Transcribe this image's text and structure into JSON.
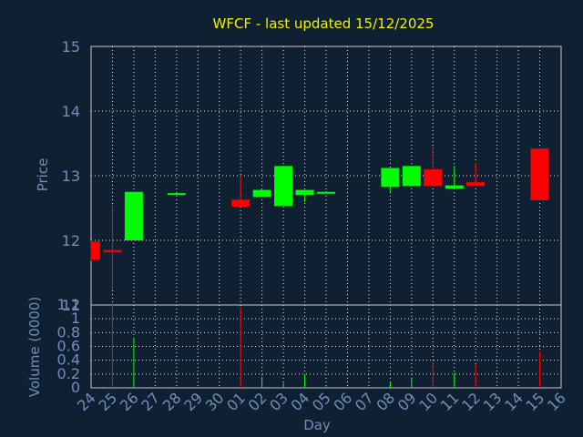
{
  "chart_data": [
    {
      "type": "candlestick",
      "title": "WFCF - last updated 15/12/2025",
      "ylabel": "Price",
      "ylim": [
        11,
        15
      ],
      "yticks": [
        "11",
        "12",
        "13",
        "14",
        "15"
      ],
      "grid": true,
      "colors": {
        "up": "#00ff00",
        "down": "#ff0000"
      },
      "candles": [
        {
          "day": "24",
          "open": 11.98,
          "high": 12.0,
          "low": 11.68,
          "close": 11.7
        },
        {
          "day": "25",
          "open": 11.85,
          "high": 12.55,
          "low": 11.23,
          "close": 11.82
        },
        {
          "day": "26",
          "open": 12.0,
          "high": 12.75,
          "low": 12.0,
          "close": 12.75
        },
        {
          "day": "28",
          "open": 12.72,
          "high": 12.74,
          "low": 12.7,
          "close": 12.73
        },
        {
          "day": "01",
          "open": 12.63,
          "high": 13.0,
          "low": 12.52,
          "close": 12.52
        },
        {
          "day": "02",
          "open": 12.67,
          "high": 12.8,
          "low": 12.67,
          "close": 12.78
        },
        {
          "day": "03",
          "open": 12.53,
          "high": 13.15,
          "low": 12.53,
          "close": 13.15
        },
        {
          "day": "04",
          "open": 12.7,
          "high": 12.78,
          "low": 12.6,
          "close": 12.78
        },
        {
          "day": "05",
          "open": 12.74,
          "high": 12.76,
          "low": 12.73,
          "close": 12.75
        },
        {
          "day": "08",
          "open": 12.83,
          "high": 13.12,
          "low": 12.75,
          "close": 13.12
        },
        {
          "day": "09",
          "open": 12.84,
          "high": 13.15,
          "low": 12.84,
          "close": 13.15
        },
        {
          "day": "10",
          "open": 13.1,
          "high": 13.45,
          "low": 12.83,
          "close": 12.84
        },
        {
          "day": "11",
          "open": 12.8,
          "high": 13.15,
          "low": 12.8,
          "close": 12.85
        },
        {
          "day": "12",
          "open": 12.9,
          "high": 13.2,
          "low": 12.84,
          "close": 12.84
        },
        {
          "day": "15",
          "open": 13.42,
          "high": 13.42,
          "low": 12.62,
          "close": 12.62
        }
      ]
    },
    {
      "type": "bar",
      "xlabel": "Day",
      "ylabel": "Volume (0000)",
      "ylim": [
        0,
        1.2
      ],
      "yticks": [
        "0",
        "0.2",
        "0.4",
        "0.6",
        "0.8",
        "1",
        "1.2"
      ],
      "categories": [
        "24",
        "25",
        "26",
        "27",
        "28",
        "29",
        "30",
        "01",
        "02",
        "03",
        "04",
        "05",
        "06",
        "07",
        "08",
        "09",
        "10",
        "11",
        "12",
        "13",
        "14",
        "15",
        "16"
      ],
      "volumes": [
        {
          "day": "25",
          "value": 1.2,
          "color": "#ff0000"
        },
        {
          "day": "26",
          "value": 0.72,
          "color": "#00ff00"
        },
        {
          "day": "01",
          "value": 1.17,
          "color": "#ff0000"
        },
        {
          "day": "02",
          "value": 0.16,
          "color": "#00ff00"
        },
        {
          "day": "03",
          "value": 0.07,
          "color": "#00ff00"
        },
        {
          "day": "04",
          "value": 0.2,
          "color": "#00ff00"
        },
        {
          "day": "05",
          "value": 0.02,
          "color": "#00ff00"
        },
        {
          "day": "08",
          "value": 0.08,
          "color": "#00ff00"
        },
        {
          "day": "09",
          "value": 0.14,
          "color": "#00ff00"
        },
        {
          "day": "10",
          "value": 0.38,
          "color": "#ff0000"
        },
        {
          "day": "11",
          "value": 0.22,
          "color": "#00ff00"
        },
        {
          "day": "12",
          "value": 0.34,
          "color": "#ff0000"
        },
        {
          "day": "15",
          "value": 0.53,
          "color": "#ff0000"
        }
      ]
    }
  ]
}
